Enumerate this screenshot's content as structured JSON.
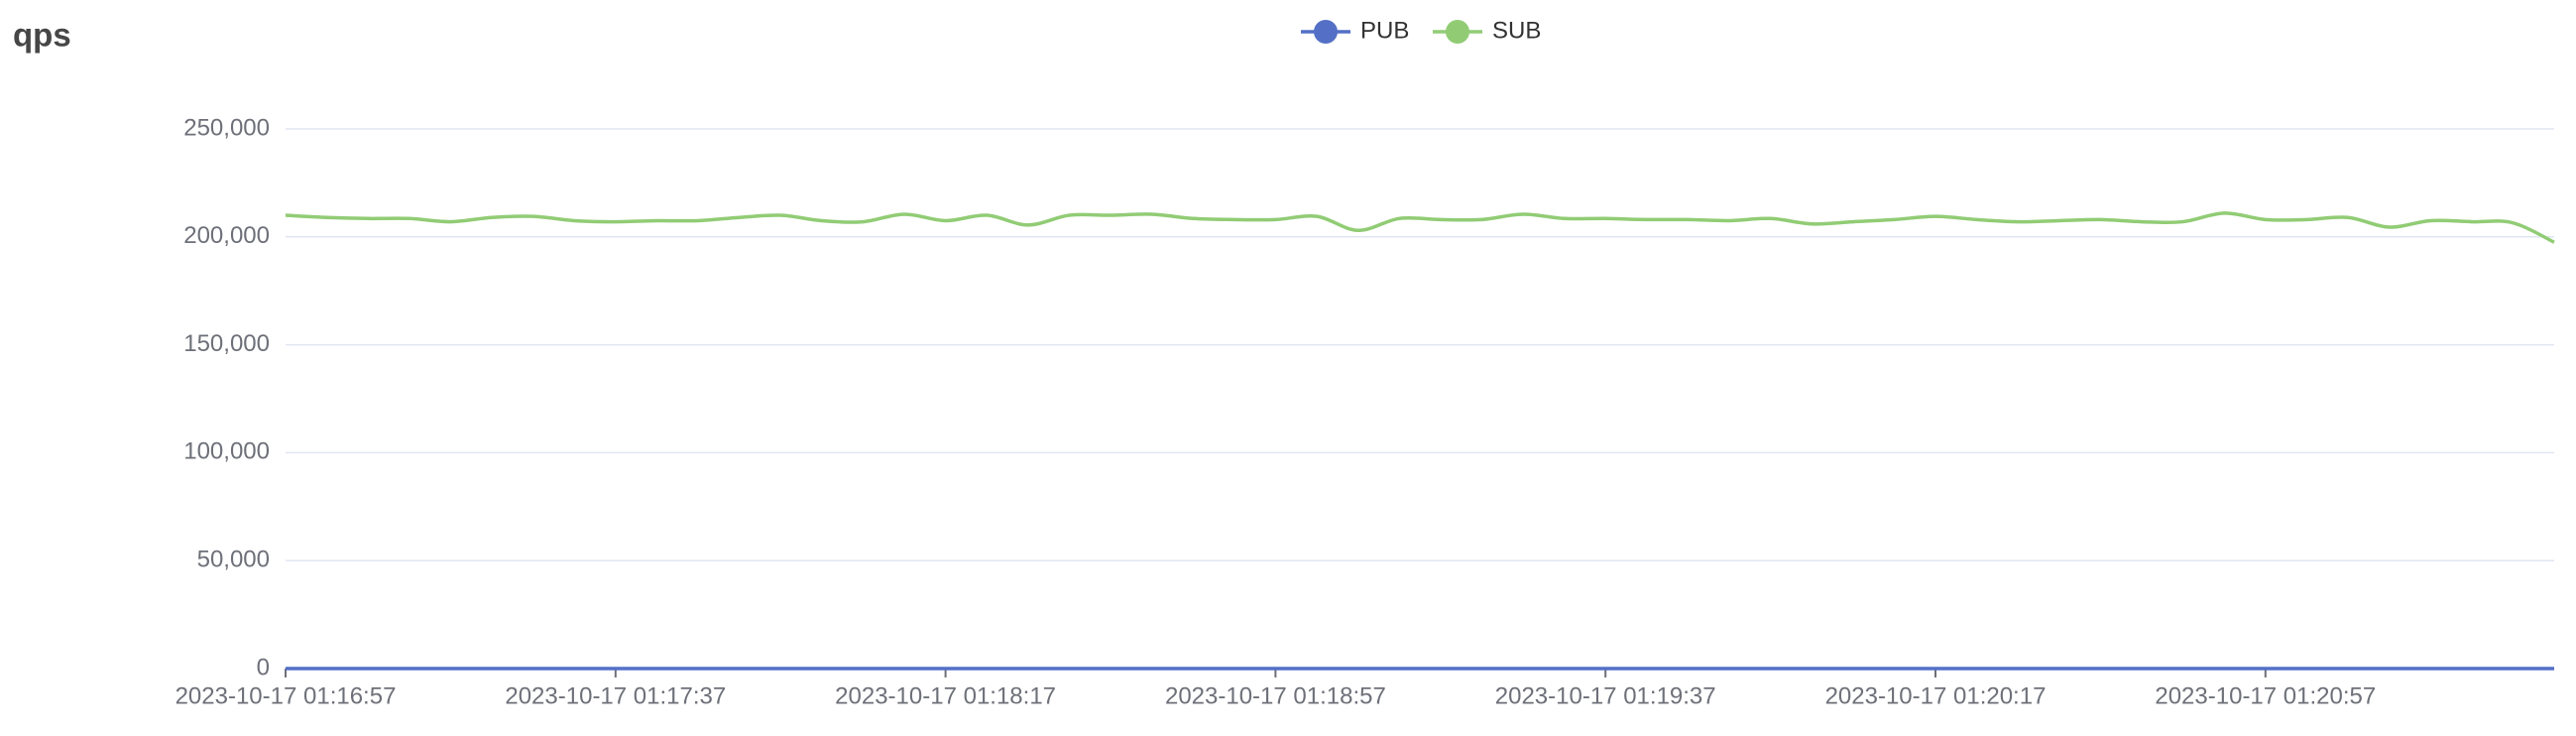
{
  "chart_data": {
    "type": "line",
    "title": "qps",
    "categories": [
      "2023-10-17 01:16:57",
      null,
      null,
      null,
      null,
      null,
      null,
      null,
      "2023-10-17 01:17:37",
      null,
      null,
      null,
      null,
      null,
      null,
      null,
      "2023-10-17 01:18:17",
      null,
      null,
      null,
      null,
      null,
      null,
      null,
      "2023-10-17 01:18:57",
      null,
      null,
      null,
      null,
      null,
      null,
      null,
      "2023-10-17 01:19:37",
      null,
      null,
      null,
      null,
      null,
      null,
      null,
      "2023-10-17 01:20:17",
      null,
      null,
      null,
      null,
      null,
      null,
      null,
      "2023-10-17 01:20:57",
      null,
      null,
      null,
      null,
      null,
      null,
      null
    ],
    "series": [
      {
        "name": "PUB",
        "color": "#5470c6",
        "values": [
          0,
          0,
          0,
          0,
          0,
          0,
          0,
          0,
          0,
          0,
          0,
          0,
          0,
          0,
          0,
          0,
          0,
          0,
          0,
          0,
          0,
          0,
          0,
          0,
          0,
          0,
          0,
          0,
          0,
          0,
          0,
          0,
          0,
          0,
          0,
          0,
          0,
          0,
          0,
          0,
          0,
          0,
          0,
          0,
          0,
          0,
          0,
          0,
          0,
          0,
          0,
          0,
          0,
          0,
          0,
          0
        ]
      },
      {
        "name": "SUB",
        "color": "#91cc75",
        "values": [
          210000,
          209000,
          208500,
          208500,
          207000,
          209000,
          209500,
          207500,
          207000,
          207500,
          207500,
          209000,
          210000,
          207500,
          207000,
          210500,
          207500,
          210000,
          205500,
          210000,
          210000,
          210500,
          208500,
          208000,
          208000,
          209500,
          203000,
          208500,
          208000,
          208000,
          210500,
          208500,
          208500,
          208000,
          208000,
          207500,
          208500,
          206000,
          207000,
          208000,
          209500,
          208000,
          207000,
          207500,
          208000,
          207000,
          207000,
          211000,
          208000,
          208000,
          209000,
          204500,
          207500,
          207000,
          206500,
          197500
        ]
      }
    ],
    "ylim": [
      0,
      250000
    ],
    "yticks": [
      {
        "value": 0,
        "label": "0"
      },
      {
        "value": 50000,
        "label": "50,000"
      },
      {
        "value": 100000,
        "label": "100,000"
      },
      {
        "value": 150000,
        "label": "150,000"
      },
      {
        "value": 200000,
        "label": "200,000"
      },
      {
        "value": 250000,
        "label": "250,000"
      }
    ],
    "grid": true,
    "legend": "top"
  }
}
